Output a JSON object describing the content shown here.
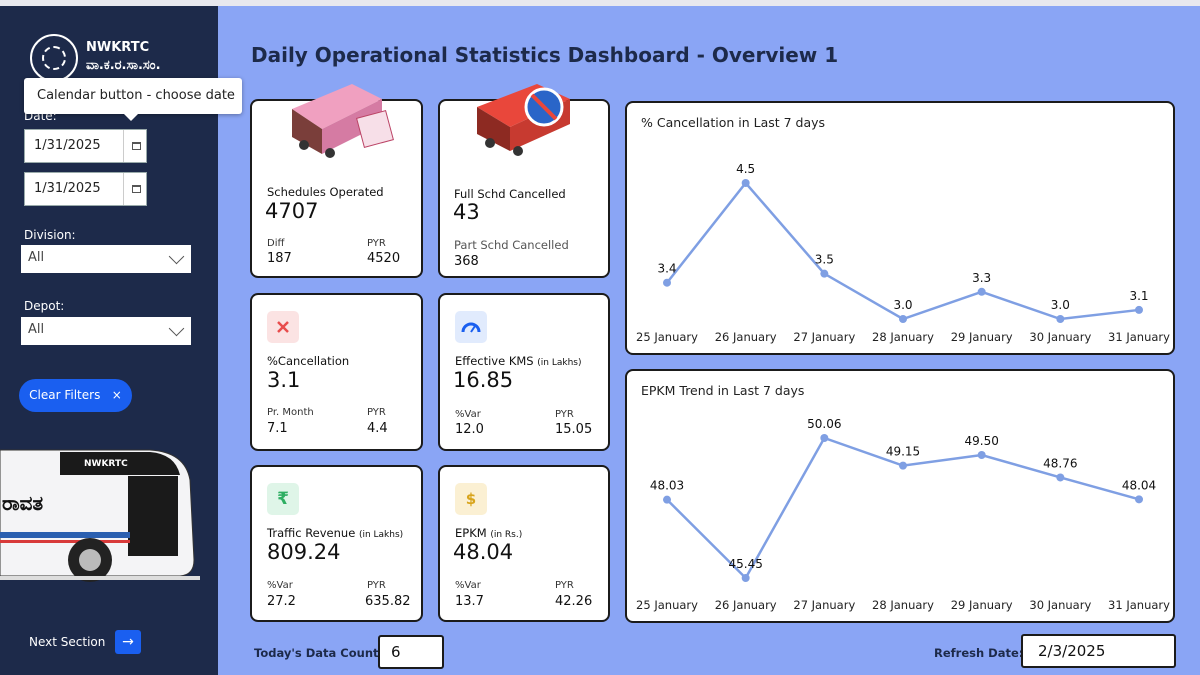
{
  "sidebar": {
    "org_name": "NWKRTC",
    "org_name_kannada": "ವಾ.ಕ.ರ.ಸಾ.ಸಂ.",
    "tooltip": "Calendar button - choose date",
    "date_label": "Date:",
    "date_from": "1/31/2025",
    "date_to": "1/31/2025",
    "division_label": "Division:",
    "division_value": "All",
    "depot_label": "Depot:",
    "depot_value": "All",
    "clear_filters": "Clear Filters",
    "clear_icon": "×",
    "next_section": "Next Section",
    "next_icon": "→",
    "bus_text": "NWKRTC",
    "bus_side_text": "ರಾವತ"
  },
  "title": "Daily Operational Statistics Dashboard - Overview 1",
  "cards": {
    "schedules": {
      "name": "Schedules Operated",
      "value": "4707",
      "l1": "Diff",
      "v1": "187",
      "l2": "PYR",
      "v2": "4520",
      "icon": "bus-calendar-icon"
    },
    "cancelled": {
      "name": "Full Schd Cancelled",
      "value": "43",
      "l1": "Part Schd Cancelled",
      "v1": "368",
      "icon": "bus-cancelled-icon"
    },
    "cancellation": {
      "name": "%Cancellation",
      "value": "3.1",
      "l1": "Pr. Month",
      "v1": "7.1",
      "l2": "PYR",
      "v2": "4.4",
      "icon": "close-icon",
      "icon_color": "#e84c4c"
    },
    "kms": {
      "name": "Effective KMS",
      "unit": "(in Lakhs)",
      "value": "16.85",
      "l1": "%Var",
      "v1": "12.0",
      "l2": "PYR",
      "v2": "15.05",
      "icon": "speedometer-icon",
      "icon_color": "#1a5ff0"
    },
    "revenue": {
      "name": "Traffic Revenue",
      "unit": "(in Lakhs)",
      "value": "809.24",
      "l1": "%Var",
      "v1": "27.2",
      "l2": "PYR",
      "v2": "635.82",
      "icon": "rupee-icon",
      "icon_symbol": "₹",
      "icon_color": "#2eae62"
    },
    "epkm": {
      "name": "EPKM",
      "unit": "(in Rs.)",
      "value": "48.04",
      "l1": "%Var",
      "v1": "13.7",
      "l2": "PYR",
      "v2": "42.26",
      "icon": "money-bag-icon",
      "icon_symbol": "$",
      "icon_color": "#d8a41b"
    }
  },
  "footer": {
    "count_label": "Today's Data Count:",
    "count_value": "6",
    "refresh_label": "Refresh Date:",
    "refresh_value": "2/3/2025"
  },
  "chart_data": [
    {
      "type": "line",
      "title": "% Cancellation in Last 7 days",
      "categories": [
        "25 January",
        "26 January",
        "27 January",
        "28 January",
        "29 January",
        "30 January",
        "31 January"
      ],
      "series": [
        {
          "values": [
            3.4,
            4.5,
            3.5,
            3.0,
            3.3,
            3.0,
            3.1
          ]
        }
      ],
      "labels": [
        "3.4",
        "4.5",
        "3.5",
        "3.0",
        "3.3",
        "3.0",
        "3.1"
      ],
      "color": "#7f9fe3",
      "ylim": [
        3.0,
        4.5
      ],
      "grid": false
    },
    {
      "type": "line",
      "title": "EPKM Trend in Last 7 days",
      "categories": [
        "25 January",
        "26 January",
        "27 January",
        "28 January",
        "29 January",
        "30 January",
        "31 January"
      ],
      "series": [
        {
          "values": [
            48.03,
            45.45,
            50.06,
            49.15,
            49.5,
            48.76,
            48.04
          ]
        }
      ],
      "labels": [
        "48.03",
        "45.45",
        "50.06",
        "49.15",
        "49.50",
        "48.76",
        "48.04"
      ],
      "color": "#7f9fe3",
      "ylim": [
        45.45,
        50.06
      ],
      "grid": false
    }
  ]
}
